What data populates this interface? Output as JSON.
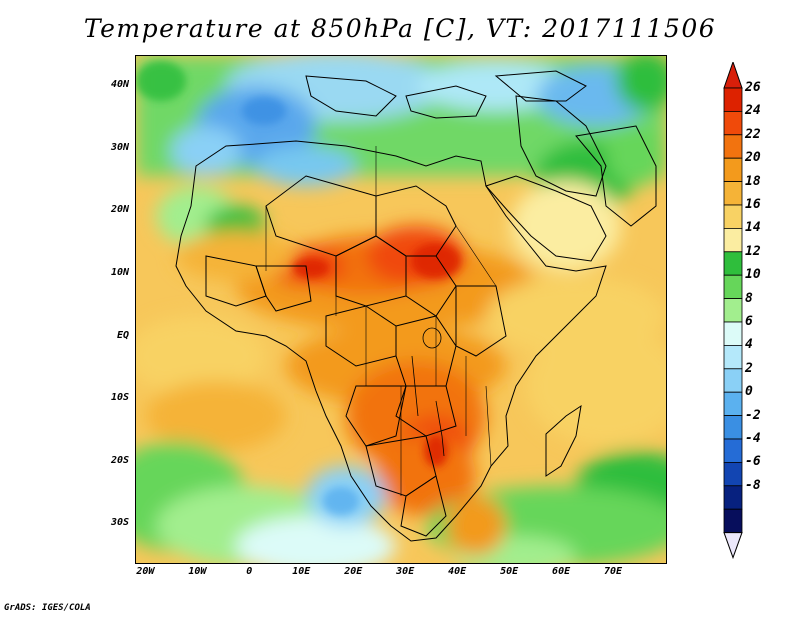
{
  "title": "Temperature at 850hPa [C], VT: 2017111506",
  "footer": "GrADS: IGES/COLA",
  "map": {
    "lat_ticks": [
      "40N",
      "30N",
      "20N",
      "10N",
      "EQ",
      "10S",
      "20S",
      "30S"
    ],
    "lat_values": [
      40,
      30,
      20,
      10,
      0,
      -10,
      -20,
      -30
    ],
    "lon_ticks": [
      "20W",
      "10W",
      "0",
      "10E",
      "20E",
      "30E",
      "40E",
      "50E",
      "60E",
      "70E"
    ],
    "lon_values": [
      -20,
      -10,
      0,
      10,
      20,
      30,
      40,
      50,
      60,
      70
    ],
    "lon_range": [
      -22,
      80
    ],
    "lat_range": [
      -36,
      45
    ]
  },
  "colorbar": {
    "labels": [
      "26",
      "24",
      "22",
      "20",
      "18",
      "16",
      "14",
      "12",
      "10",
      "8",
      "6",
      "4",
      "2",
      "0",
      "-2",
      "-4",
      "-6",
      "-8"
    ],
    "colors": [
      "#dd2200",
      "#f04a0a",
      "#f2730f",
      "#f39a1c",
      "#f5b337",
      "#f8d264",
      "#fbeda1",
      "#2fbe3c",
      "#66d65a",
      "#a2ee8e",
      "#dcfbf8",
      "#b4e8fa",
      "#8ad0f6",
      "#5bb1ef",
      "#3a8fe3",
      "#256cd6",
      "#1245b2",
      "#07217f",
      "#070e5c"
    ],
    "top_color": "#d81f0a",
    "bottom_color": "#ece8fb"
  }
}
